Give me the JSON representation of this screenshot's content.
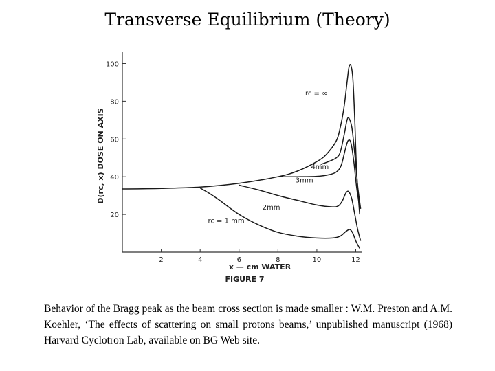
{
  "slide": {
    "title": "Transverse Equilibrium (Theory)",
    "caption": "Behavior of the Bragg peak as the beam cross section is made smaller : W.M. Preston and A.M. Koehler, ‘The effects of scattering on small protons beams,’ unpublished manuscript (1968) Harvard Cyclotron Lab, available on BG Web site."
  },
  "chart_data": {
    "type": "line",
    "title": "FIGURE 7",
    "xlabel": "x — cm WATER",
    "ylabel": "D(rc, x)  DOSE ON AXIS",
    "xlim": [
      0,
      12.3
    ],
    "ylim": [
      0,
      106
    ],
    "x_ticks": [
      2,
      4,
      6,
      8,
      10,
      12
    ],
    "y_ticks": [
      20,
      40,
      60,
      80,
      100
    ],
    "grid": false,
    "series": [
      {
        "name": "rc = ∞",
        "label_x": 9.4,
        "label_y": 83,
        "points": [
          [
            0,
            33.5
          ],
          [
            2,
            33.8
          ],
          [
            4,
            34.5
          ],
          [
            6,
            36.5
          ],
          [
            8,
            40
          ],
          [
            9,
            43
          ],
          [
            10,
            48
          ],
          [
            10.5,
            52
          ],
          [
            11,
            59
          ],
          [
            11.2,
            66
          ],
          [
            11.4,
            77
          ],
          [
            11.55,
            90
          ],
          [
            11.65,
            98
          ],
          [
            11.75,
            99
          ],
          [
            11.85,
            92
          ],
          [
            11.95,
            70
          ],
          [
            12.05,
            42
          ],
          [
            12.2,
            20
          ]
        ]
      },
      {
        "name": "4mm",
        "label_x": 9.7,
        "label_y": 44,
        "points": [
          [
            10.2,
            46.5
          ],
          [
            10.6,
            48
          ],
          [
            11,
            50
          ],
          [
            11.2,
            53
          ],
          [
            11.4,
            62
          ],
          [
            11.55,
            70
          ],
          [
            11.65,
            71
          ],
          [
            11.8,
            66
          ],
          [
            11.95,
            52
          ],
          [
            12.1,
            35
          ],
          [
            12.25,
            23
          ]
        ]
      },
      {
        "name": "3mm",
        "label_x": 8.9,
        "label_y": 37,
        "points": [
          [
            8,
            40
          ],
          [
            9,
            40
          ],
          [
            10,
            40.2
          ],
          [
            10.6,
            41
          ],
          [
            11,
            42.5
          ],
          [
            11.25,
            46
          ],
          [
            11.45,
            54
          ],
          [
            11.6,
            59
          ],
          [
            11.75,
            58
          ],
          [
            11.9,
            48
          ],
          [
            12.05,
            34
          ],
          [
            12.2,
            24
          ]
        ]
      },
      {
        "name": "2mm",
        "label_x": 7.2,
        "label_y": 22.5,
        "points": [
          [
            6,
            35.5
          ],
          [
            7,
            33
          ],
          [
            8,
            30
          ],
          [
            9,
            27.5
          ],
          [
            10,
            25
          ],
          [
            10.8,
            24
          ],
          [
            11.1,
            24.5
          ],
          [
            11.3,
            27
          ],
          [
            11.5,
            31.5
          ],
          [
            11.65,
            32
          ],
          [
            11.8,
            28
          ],
          [
            11.95,
            20
          ],
          [
            12.1,
            12
          ],
          [
            12.25,
            6
          ]
        ]
      },
      {
        "name": "rc = 1 mm",
        "label_x": 4.4,
        "label_y": 15.5,
        "points": [
          [
            4,
            34
          ],
          [
            4.5,
            31
          ],
          [
            5,
            27.5
          ],
          [
            6,
            20
          ],
          [
            7,
            14.5
          ],
          [
            8,
            10.5
          ],
          [
            9,
            8.5
          ],
          [
            10,
            7.5
          ],
          [
            10.8,
            7.5
          ],
          [
            11.2,
            8.5
          ],
          [
            11.5,
            11
          ],
          [
            11.7,
            12
          ],
          [
            11.85,
            10
          ],
          [
            12,
            6
          ],
          [
            12.2,
            2
          ]
        ]
      }
    ]
  }
}
